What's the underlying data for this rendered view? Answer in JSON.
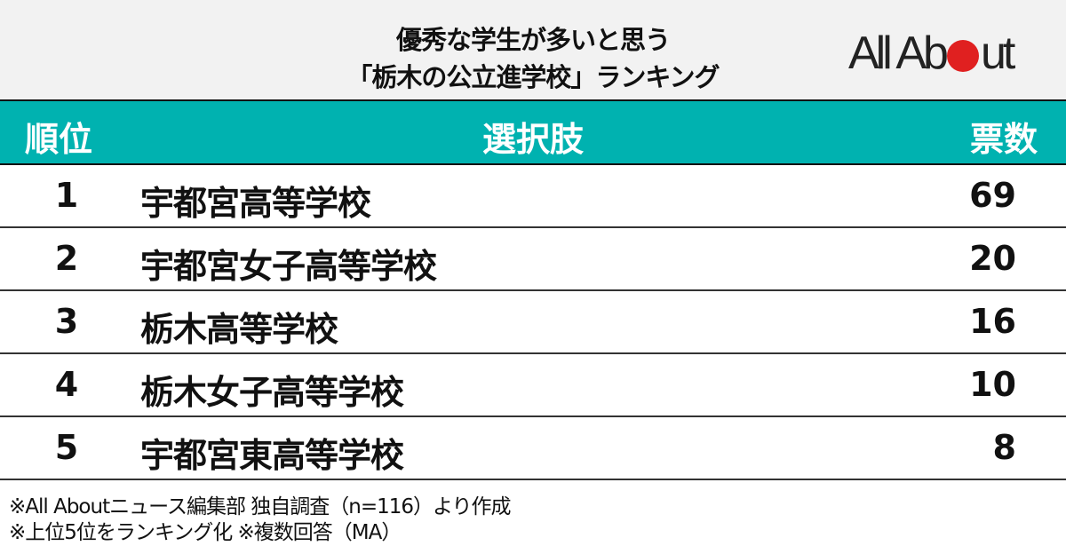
{
  "title": {
    "line1": "優秀な学生が多いと思う",
    "line2": "「栃木の公立進学校」ランキング"
  },
  "logo": {
    "text": "All About",
    "accent_color": "#e02020"
  },
  "colors": {
    "header_bg": "#00b2b0",
    "title_bg": "#f2f2f2"
  },
  "chart_data": {
    "type": "table",
    "columns": [
      "順位",
      "選択肢",
      "票数"
    ],
    "rows": [
      {
        "rank": "1",
        "name": "宇都宮高等学校",
        "votes": 69
      },
      {
        "rank": "2",
        "name": "宇都宮女子高等学校",
        "votes": 20
      },
      {
        "rank": "3",
        "name": "栃木高等学校",
        "votes": 16
      },
      {
        "rank": "4",
        "name": "栃木女子高等学校",
        "votes": 10
      },
      {
        "rank": "5",
        "name": "宇都宮東高等学校",
        "votes": 8
      }
    ]
  },
  "footnotes": [
    "※All Aboutニュース編集部 独自調査（n=116）より作成",
    "※上位5位をランキング化 ※複数回答（MA）"
  ]
}
